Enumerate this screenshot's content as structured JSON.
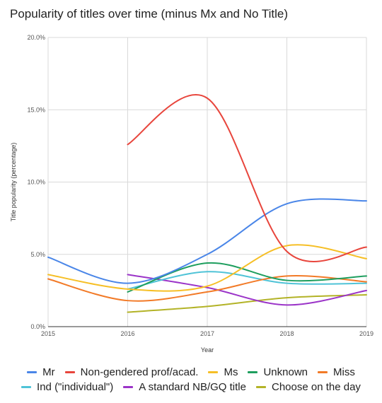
{
  "chart_data": {
    "type": "line",
    "title": "Popularity of titles over time (minus Mx and No Title)",
    "xlabel": "Year",
    "ylabel": "Title popularity (percentage)",
    "x": [
      2015,
      2016,
      2017,
      2018,
      2019
    ],
    "xlim": [
      2015,
      2019
    ],
    "ylim": [
      0,
      20
    ],
    "yticks": [
      "0.0%",
      "5.0%",
      "10.0%",
      "15.0%",
      "20.0%"
    ],
    "xticks": [
      "2015",
      "2016",
      "2017",
      "2018",
      "2019"
    ],
    "grid": true,
    "legend_position": "bottom",
    "series": [
      {
        "name": "Mr",
        "color": "#4a86e8",
        "values": [
          4.8,
          3.0,
          5.0,
          8.5,
          8.7
        ]
      },
      {
        "name": "Non-gendered prof/acad.",
        "color": "#e8453c",
        "values": [
          null,
          12.6,
          15.8,
          5.2,
          5.5
        ]
      },
      {
        "name": "Ms",
        "color": "#f6bf26",
        "values": [
          3.6,
          2.6,
          2.8,
          5.6,
          4.7
        ]
      },
      {
        "name": "Unknown",
        "color": "#1e9e5e",
        "values": [
          null,
          2.4,
          4.4,
          3.2,
          3.5
        ]
      },
      {
        "name": "Miss",
        "color": "#f27a27",
        "values": [
          3.3,
          1.8,
          2.4,
          3.5,
          3.1
        ]
      },
      {
        "name": "Ind (\"individual\")",
        "color": "#4fc3d7",
        "values": [
          null,
          2.6,
          3.8,
          3.0,
          3.0
        ]
      },
      {
        "name": "A standard NB/GQ title",
        "color": "#9b34c8",
        "values": [
          null,
          3.6,
          2.7,
          1.5,
          2.5
        ]
      },
      {
        "name": "Choose on the day",
        "color": "#b3b327",
        "values": [
          null,
          1.0,
          1.4,
          2.0,
          2.2
        ]
      }
    ]
  }
}
